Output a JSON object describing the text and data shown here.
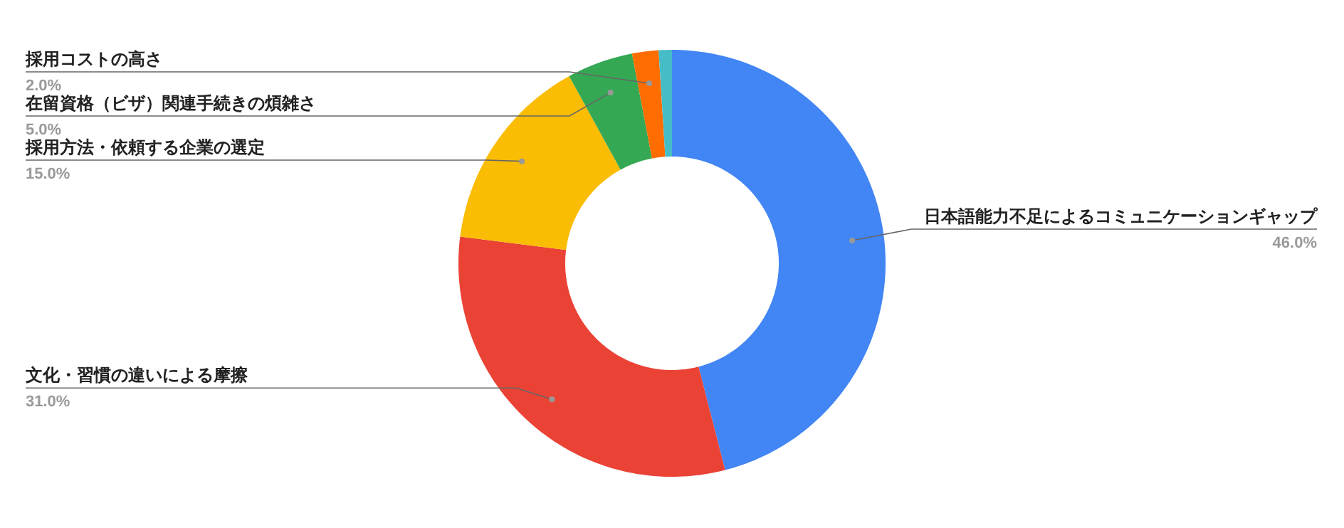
{
  "chart_data": {
    "type": "donut",
    "categories": [
      "日本語能力不足によるコミュニケーションギャップ",
      "文化・習慣の違いによる摩擦",
      "採用方法・依頼する企業の選定",
      "在留資格（ビザ）関連手続きの煩雑さ",
      "採用コストの高さ",
      null
    ],
    "values": [
      46,
      31,
      15,
      5,
      2,
      1
    ],
    "colors": [
      "#4285f4",
      "#ea4335",
      "#fbbc04",
      "#34a853",
      "#ff6d01",
      "#46bdc6"
    ],
    "value_labels": [
      "46.0%",
      "31.0%",
      "15.0%",
      "5.0%",
      "2.0%",
      null
    ]
  }
}
